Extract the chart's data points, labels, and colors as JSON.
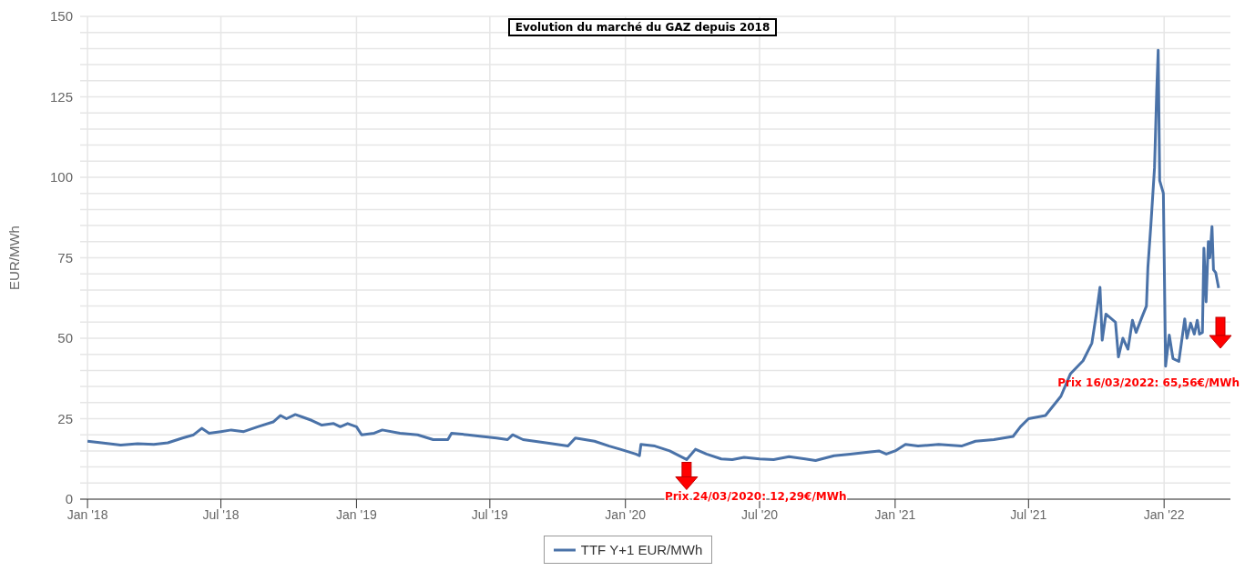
{
  "chart_data": {
    "type": "line",
    "title": "Evolution du marché du GAZ depuis 2018",
    "ylabel": "EUR/MWh",
    "x": [
      "2018-01-01",
      "2018-01-20",
      "2018-02-15",
      "2018-03-10",
      "2018-04-01",
      "2018-04-20",
      "2018-05-10",
      "2018-05-25",
      "2018-06-05",
      "2018-06-15",
      "2018-07-01",
      "2018-07-15",
      "2018-08-01",
      "2018-08-20",
      "2018-09-10",
      "2018-09-20",
      "2018-09-28",
      "2018-10-10",
      "2018-10-20",
      "2018-11-01",
      "2018-11-15",
      "2018-12-01",
      "2018-12-10",
      "2018-12-20",
      "2019-01-01",
      "2019-01-08",
      "2019-01-25",
      "2019-02-05",
      "2019-03-01",
      "2019-03-25",
      "2019-04-15",
      "2019-05-05",
      "2019-05-10",
      "2019-06-01",
      "2019-06-20",
      "2019-07-10",
      "2019-07-25",
      "2019-08-01",
      "2019-08-15",
      "2019-09-15",
      "2019-10-15",
      "2019-10-25",
      "2019-11-20",
      "2019-12-10",
      "2019-12-25",
      "2020-01-15",
      "2020-01-20",
      "2020-01-22",
      "2020-02-10",
      "2020-03-01",
      "2020-03-24",
      "2020-04-05",
      "2020-04-20",
      "2020-05-10",
      "2020-05-25",
      "2020-06-10",
      "2020-07-01",
      "2020-07-20",
      "2020-08-10",
      "2020-09-01",
      "2020-09-15",
      "2020-10-10",
      "2020-11-01",
      "2020-11-20",
      "2020-12-10",
      "2020-12-20",
      "2021-01-01",
      "2021-01-15",
      "2021-02-01",
      "2021-03-01",
      "2021-04-01",
      "2021-04-20",
      "2021-05-15",
      "2021-06-10",
      "2021-06-20",
      "2021-07-01",
      "2021-07-24",
      "2021-08-14",
      "2021-08-27",
      "2021-09-13",
      "2021-09-25",
      "2021-10-01",
      "2021-10-06",
      "2021-10-09",
      "2021-10-14",
      "2021-10-27",
      "2021-10-31",
      "2021-11-06",
      "2021-11-13",
      "2021-11-19",
      "2021-11-24",
      "2021-12-02",
      "2021-12-08",
      "2021-12-10",
      "2021-12-14",
      "2021-12-19",
      "2021-12-22",
      "2021-12-24",
      "2021-12-26",
      "2021-12-31",
      "2022-01-03",
      "2022-01-08",
      "2022-01-13",
      "2022-01-21",
      "2022-01-29",
      "2022-02-01",
      "2022-02-06",
      "2022-02-11",
      "2022-02-15",
      "2022-02-18",
      "2022-02-22",
      "2022-02-24",
      "2022-02-27",
      "2022-03-02",
      "2022-03-04",
      "2022-03-07",
      "2022-03-09",
      "2022-03-12",
      "2022-03-16"
    ],
    "series": [
      {
        "name": "TTF Y+1 EUR/MWh",
        "color": "#4a72a8",
        "values": [
          18,
          17.5,
          16.8,
          17.2,
          17,
          17.5,
          19,
          20,
          22,
          20.5,
          21,
          21.5,
          21,
          22.5,
          24,
          26,
          25,
          26.3,
          25.5,
          24.5,
          23,
          23.5,
          22.5,
          23.5,
          22.5,
          20,
          20.5,
          21.5,
          20.5,
          20,
          18.5,
          18.5,
          20.5,
          20,
          19.5,
          19,
          18.5,
          20,
          18.5,
          17.5,
          16.5,
          19,
          18,
          16.5,
          15.5,
          14,
          13.5,
          17,
          16.5,
          15,
          12.3,
          15.5,
          14,
          12.5,
          12.3,
          13,
          12.5,
          12.3,
          13.2,
          12.5,
          12,
          13.5,
          14,
          14.5,
          15,
          14,
          15,
          17,
          16.5,
          17,
          16.5,
          18,
          18.5,
          19.5,
          22.5,
          25,
          26,
          32,
          39,
          43,
          48.5,
          57.5,
          65.8,
          49.4,
          57.5,
          55,
          44.2,
          50,
          46.6,
          55.6,
          51.8,
          56.6,
          60,
          72,
          85,
          103,
          127,
          139.5,
          99,
          95,
          41.3,
          51,
          43.7,
          42.8,
          56,
          50,
          54.7,
          51.3,
          55.6,
          51.3,
          51.8,
          78,
          61.3,
          80,
          75,
          84.7,
          71.3,
          70.4,
          65.6
        ]
      }
    ],
    "xlim": [
      "2017-12-22",
      "2022-04-01"
    ],
    "xticks": [
      {
        "value": "2018-01-01",
        "label": "Jan '18"
      },
      {
        "value": "2018-07-01",
        "label": "Jul '18"
      },
      {
        "value": "2019-01-01",
        "label": "Jan '19"
      },
      {
        "value": "2019-07-01",
        "label": "Jul '19"
      },
      {
        "value": "2020-01-01",
        "label": "Jan '20"
      },
      {
        "value": "2020-07-01",
        "label": "Jul '20"
      },
      {
        "value": "2021-01-01",
        "label": "Jan '21"
      },
      {
        "value": "2021-07-01",
        "label": "Jul '21"
      },
      {
        "value": "2022-01-01",
        "label": "Jan '22"
      }
    ],
    "ylim": [
      0,
      150
    ],
    "yticks": [
      0,
      {
        "value": 5,
        "label": null
      },
      {
        "value": 10,
        "label": null
      },
      {
        "value": 15,
        "label": null
      },
      {
        "value": 20,
        "label": null
      },
      25,
      {
        "value": 30,
        "label": null
      },
      {
        "value": 35,
        "label": null
      },
      {
        "value": 40,
        "label": null
      },
      {
        "value": 45,
        "label": null
      },
      50,
      {
        "value": 55,
        "label": null
      },
      {
        "value": 60,
        "label": null
      },
      {
        "value": 65,
        "label": null
      },
      {
        "value": 70,
        "label": null
      },
      75,
      {
        "value": 80,
        "label": null
      },
      {
        "value": 85,
        "label": null
      },
      {
        "value": 90,
        "label": null
      },
      {
        "value": 95,
        "label": null
      },
      100,
      {
        "value": 105,
        "label": null
      },
      {
        "value": 110,
        "label": null
      },
      {
        "value": 115,
        "label": null
      },
      {
        "value": 120,
        "label": null
      },
      125,
      {
        "value": 130,
        "label": null
      },
      {
        "value": 135,
        "label": null
      },
      {
        "value": 140,
        "label": null
      },
      {
        "value": 145,
        "label": null
      },
      150
    ],
    "annotations": [
      {
        "text": "Prix 24/03/2020: 12,29€/MWh",
        "x": "2020-03-24",
        "y": 12.29
      },
      "Prix 16/03/2022: 65,56€/MWh"
    ],
    "grid": true,
    "legend": "bottom",
    "marker": "none",
    "line_style": "solid"
  }
}
